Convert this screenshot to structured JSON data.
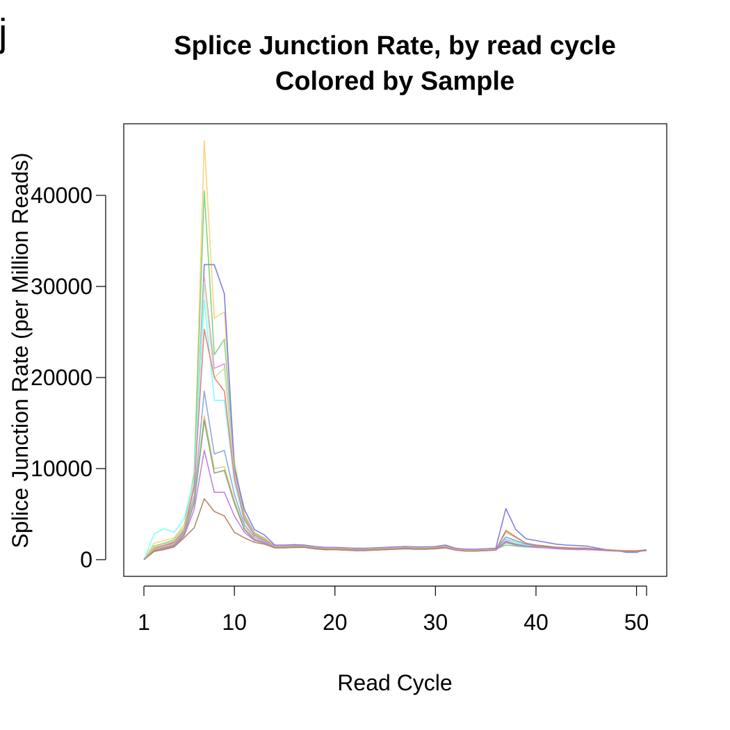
{
  "panel_label": "j",
  "chart_data": {
    "type": "line",
    "title": "Splice Junction Rate, by read cycle",
    "subtitle": "Colored by Sample",
    "xlabel": "Read Cycle",
    "ylabel": "Splice Junction Rate (per Million Reads)",
    "xlim": [
      1,
      51
    ],
    "ylim": [
      0,
      46000
    ],
    "x_ticks": [
      1,
      10,
      20,
      30,
      40,
      50,
      51
    ],
    "x_tick_labels": [
      "1",
      "10",
      "20",
      "30",
      "40",
      "50",
      ""
    ],
    "y_ticks": [
      0,
      10000,
      20000,
      30000,
      40000
    ],
    "y_tick_labels": [
      "0",
      "10000",
      "20000",
      "30000",
      "40000"
    ],
    "grid": false,
    "legend": "none",
    "x": [
      1,
      2,
      3,
      4,
      5,
      6,
      7,
      8,
      9,
      10,
      11,
      12,
      13,
      14,
      15,
      16,
      17,
      18,
      19,
      20,
      21,
      22,
      23,
      24,
      25,
      26,
      27,
      28,
      29,
      30,
      31,
      32,
      33,
      34,
      35,
      36,
      37,
      38,
      39,
      40,
      41,
      42,
      43,
      44,
      45,
      46,
      47,
      48,
      49,
      50,
      51
    ],
    "series": [
      {
        "color": "#ffd27f",
        "values": [
          0,
          1800,
          2100,
          2400,
          3800,
          9000,
          46000,
          26500,
          27200,
          10800,
          5000,
          3000,
          2400,
          1500,
          1500,
          1600,
          1550,
          1400,
          1300,
          1300,
          1250,
          1200,
          1200,
          1250,
          1300,
          1350,
          1400,
          1350,
          1350,
          1400,
          1500,
          1200,
          1100,
          1100,
          1150,
          1200,
          2500,
          2000,
          1700,
          1600,
          1500,
          1400,
          1350,
          1300,
          1300,
          1200,
          1100,
          1050,
          1000,
          1000,
          1100
        ]
      },
      {
        "color": "#7fd77f",
        "values": [
          0,
          1500,
          1800,
          2200,
          3500,
          9500,
          40500,
          22500,
          24200,
          10500,
          4800,
          2900,
          2300,
          1450,
          1450,
          1500,
          1500,
          1350,
          1250,
          1250,
          1200,
          1150,
          1150,
          1200,
          1250,
          1300,
          1350,
          1300,
          1300,
          1350,
          1450,
          1150,
          1050,
          1050,
          1100,
          1150,
          1600,
          1500,
          1400,
          1350,
          1300,
          1250,
          1250,
          1200,
          1200,
          1100,
          1050,
          1000,
          950,
          950,
          1050
        ]
      },
      {
        "color": "#7f7fe8",
        "values": [
          0,
          1000,
          1400,
          1800,
          3000,
          8000,
          32400,
          32400,
          29200,
          10000,
          5500,
          3300,
          2700,
          1600,
          1600,
          1650,
          1600,
          1450,
          1350,
          1350,
          1300,
          1250,
          1250,
          1300,
          1350,
          1400,
          1450,
          1400,
          1400,
          1450,
          1600,
          1250,
          1150,
          1150,
          1200,
          1250,
          5600,
          3300,
          2300,
          2100,
          1900,
          1700,
          1600,
          1550,
          1500,
          1300,
          1100,
          1000,
          800,
          800,
          1100
        ]
      },
      {
        "color": "#e88fe8",
        "values": [
          0,
          1300,
          1600,
          2000,
          3300,
          8500,
          31000,
          21000,
          21500,
          9500,
          4600,
          2800,
          2200,
          1450,
          1450,
          1500,
          1500,
          1350,
          1250,
          1250,
          1200,
          1150,
          1150,
          1200,
          1250,
          1300,
          1350,
          1300,
          1300,
          1350,
          1450,
          1150,
          1050,
          1050,
          1100,
          1150,
          2200,
          1900,
          1600,
          1500,
          1450,
          1350,
          1300,
          1250,
          1250,
          1150,
          1050,
          1000,
          950,
          950,
          1050
        ]
      },
      {
        "color": "#c8e8a0",
        "values": [
          0,
          1400,
          1700,
          2100,
          3400,
          8800,
          30500,
          20000,
          21000,
          9300,
          4500,
          2750,
          2200,
          1450,
          1450,
          1500,
          1500,
          1350,
          1250,
          1250,
          1200,
          1150,
          1150,
          1200,
          1250,
          1300,
          1350,
          1300,
          1300,
          1350,
          1450,
          1150,
          1050,
          1050,
          1100,
          1150,
          1800,
          1600,
          1450,
          1400,
          1350,
          1300,
          1250,
          1200,
          1200,
          1100,
          1050,
          1000,
          950,
          950,
          1050
        ]
      },
      {
        "color": "#7fffff",
        "values": [
          0,
          2800,
          3400,
          3000,
          4500,
          9000,
          28500,
          17500,
          17500,
          8500,
          4200,
          2700,
          2100,
          1450,
          1450,
          1500,
          1500,
          1350,
          1250,
          1250,
          1200,
          1150,
          1150,
          1200,
          1250,
          1300,
          1350,
          1300,
          1300,
          1350,
          1450,
          1150,
          1050,
          1050,
          1100,
          1150,
          2300,
          1900,
          1600,
          1500,
          1450,
          1350,
          1300,
          1250,
          1250,
          1150,
          1050,
          1000,
          950,
          950,
          1050
        ]
      },
      {
        "color": "#f07f7f",
        "values": [
          0,
          1200,
          1500,
          1900,
          3200,
          8000,
          25300,
          20000,
          18500,
          9000,
          4400,
          2700,
          2150,
          1450,
          1450,
          1500,
          1500,
          1350,
          1250,
          1250,
          1200,
          1150,
          1150,
          1200,
          1250,
          1300,
          1350,
          1300,
          1300,
          1350,
          1450,
          1150,
          1050,
          1050,
          1100,
          1150,
          2000,
          1700,
          1500,
          1450,
          1400,
          1300,
          1250,
          1200,
          1200,
          1100,
          1050,
          1000,
          950,
          950,
          1050
        ]
      },
      {
        "color": "#8fa8e8",
        "values": [
          0,
          1100,
          1400,
          1800,
          3000,
          7000,
          18500,
          11600,
          12000,
          7200,
          3800,
          2500,
          2000,
          1400,
          1400,
          1450,
          1450,
          1300,
          1200,
          1200,
          1150,
          1100,
          1100,
          1150,
          1200,
          1250,
          1300,
          1250,
          1250,
          1300,
          1400,
          1100,
          1000,
          1000,
          1050,
          1100,
          2500,
          2100,
          1700,
          1550,
          1450,
          1350,
          1300,
          1250,
          1250,
          1150,
          1050,
          1000,
          950,
          950,
          1050
        ]
      },
      {
        "color": "#e8c87f",
        "values": [
          0,
          1100,
          1400,
          1700,
          2900,
          6500,
          15800,
          10000,
          10200,
          6500,
          3500,
          2300,
          1900,
          1400,
          1400,
          1450,
          1450,
          1300,
          1200,
          1200,
          1150,
          1100,
          1100,
          1150,
          1200,
          1250,
          1300,
          1250,
          1250,
          1300,
          1400,
          1100,
          1000,
          1000,
          1050,
          1100,
          3000,
          2400,
          1800,
          1600,
          1500,
          1350,
          1300,
          1250,
          1250,
          1150,
          1050,
          1000,
          950,
          950,
          1050
        ]
      },
      {
        "color": "#7fa87f",
        "values": [
          0,
          1000,
          1300,
          1600,
          2800,
          6200,
          15300,
          9500,
          9800,
          6200,
          3300,
          2200,
          1850,
          1350,
          1350,
          1400,
          1400,
          1250,
          1150,
          1150,
          1100,
          1050,
          1050,
          1100,
          1150,
          1200,
          1250,
          1200,
          1200,
          1250,
          1350,
          1050,
          950,
          950,
          1000,
          1050,
          2000,
          1700,
          1500,
          1400,
          1350,
          1250,
          1200,
          1150,
          1150,
          1100,
          1000,
          950,
          900,
          900,
          1000
        ]
      },
      {
        "color": "#c87fe8",
        "values": [
          0,
          900,
          1200,
          1500,
          2600,
          5500,
          12000,
          7400,
          7400,
          4800,
          3000,
          2100,
          1800,
          1300,
          1300,
          1350,
          1350,
          1200,
          1100,
          1100,
          1050,
          1000,
          1000,
          1050,
          1100,
          1150,
          1200,
          1150,
          1150,
          1200,
          1300,
          1050,
          950,
          950,
          1000,
          1050,
          1900,
          1600,
          1450,
          1350,
          1300,
          1200,
          1150,
          1100,
          1100,
          1050,
          1000,
          950,
          900,
          900,
          1000
        ]
      },
      {
        "color": "#b8856f",
        "values": [
          0,
          900,
          1100,
          1400,
          2400,
          3500,
          6700,
          5300,
          4800,
          3000,
          2400,
          1900,
          1700,
          1300,
          1300,
          1350,
          1350,
          1200,
          1100,
          1100,
          1050,
          1000,
          1000,
          1050,
          1100,
          1150,
          1200,
          1150,
          1150,
          1200,
          1300,
          1050,
          950,
          950,
          1000,
          1050,
          3200,
          2500,
          1800,
          1600,
          1500,
          1350,
          1300,
          1250,
          1250,
          1150,
          1050,
          1000,
          950,
          950,
          1050
        ]
      }
    ]
  }
}
